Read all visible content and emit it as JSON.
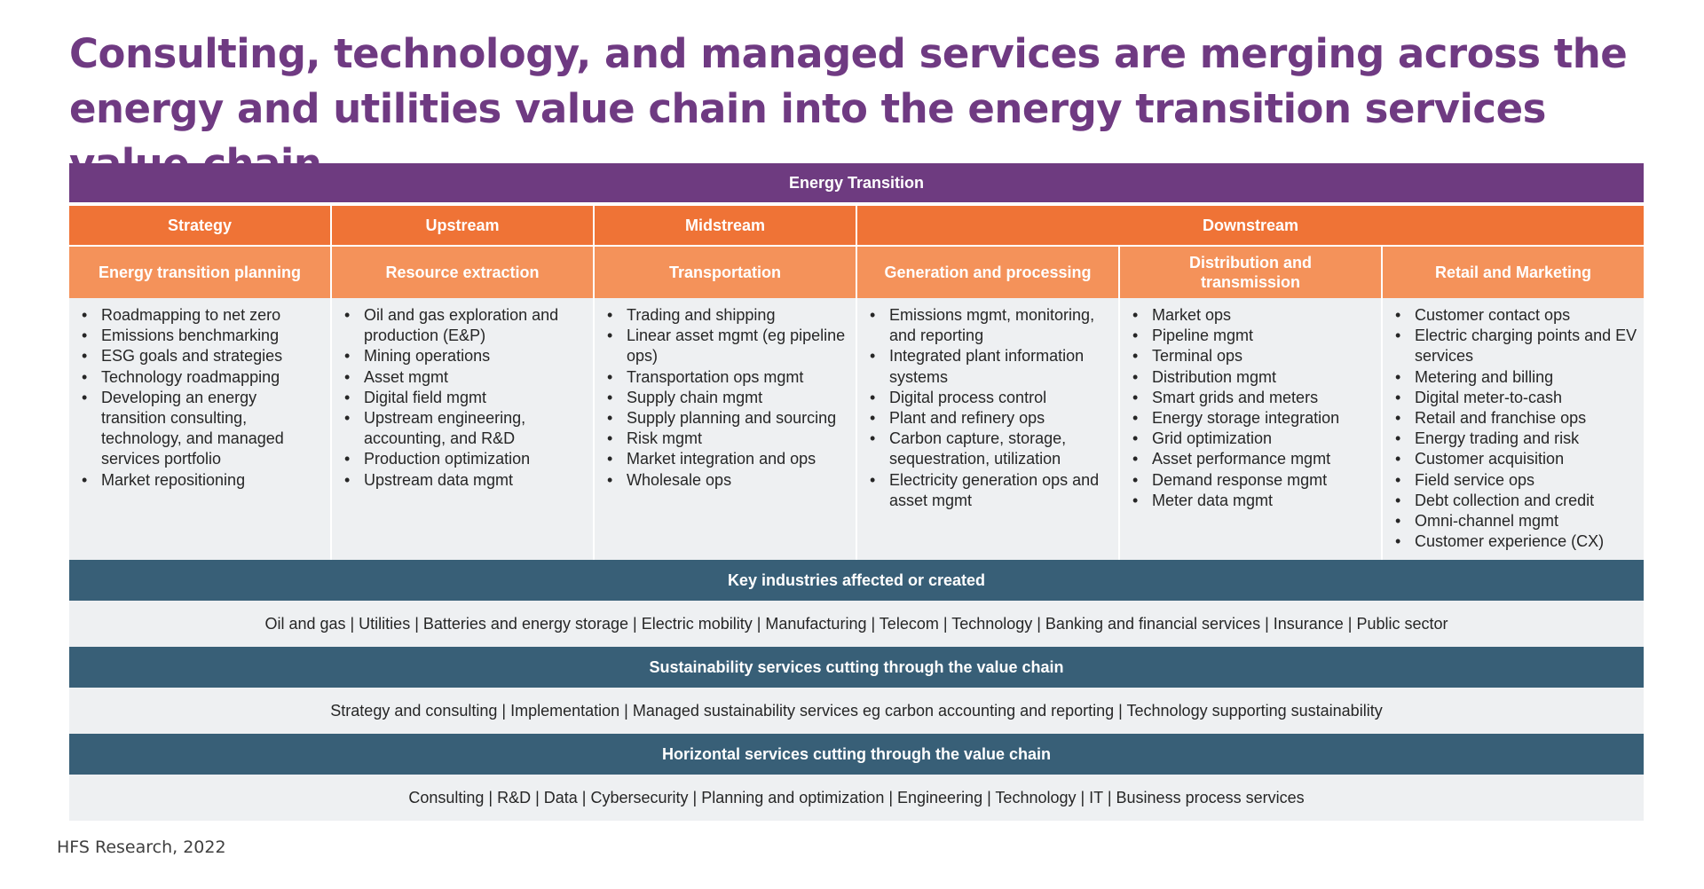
{
  "title": {
    "line1": "Consulting, technology, and managed services are merging across the",
    "line2": "energy and utilities value chain into the energy transition services value chain"
  },
  "top_band": "Energy Transition",
  "segments": [
    {
      "label": "Strategy"
    },
    {
      "label": "Upstream"
    },
    {
      "label": "Midstream"
    },
    {
      "label": "Downstream"
    }
  ],
  "columns": [
    {
      "header": "Energy transition planning",
      "items": [
        "Roadmapping to net zero",
        "Emissions benchmarking",
        "ESG goals and strategies",
        "Technology roadmapping",
        "Developing an energy transition consulting, technology, and managed services portfolio",
        "Market repositioning"
      ]
    },
    {
      "header": "Resource extraction",
      "items": [
        "Oil and gas exploration and production (E&P)",
        "Mining operations",
        "Asset mgmt",
        "Digital field mgmt",
        "Upstream engineering, accounting, and R&D",
        "Production optimization",
        "Upstream data mgmt"
      ]
    },
    {
      "header": "Transportation",
      "items": [
        "Trading and shipping",
        "Linear asset mgmt (eg pipeline ops)",
        "Transportation ops mgmt",
        "Supply chain mgmt",
        "Supply planning and sourcing",
        "Risk mgmt",
        "Market integration and ops",
        "Wholesale ops"
      ]
    },
    {
      "header": "Generation and processing",
      "items": [
        "Emissions mgmt, monitoring, and reporting",
        "Integrated plant information systems",
        "Digital process control",
        "Plant and refinery ops",
        "Carbon capture, storage, sequestration, utilization",
        "Electricity generation ops and asset mgmt"
      ]
    },
    {
      "header": "Distribution and transmission",
      "items": [
        "Market ops",
        "Pipeline mgmt",
        "Terminal ops",
        "Distribution mgmt",
        "Smart grids and meters",
        "Energy storage integration",
        "Grid optimization",
        "Asset performance mgmt",
        "Demand response mgmt",
        "Meter data mgmt"
      ]
    },
    {
      "header": "Retail and Marketing",
      "items": [
        "Customer contact ops",
        "Electric charging points and EV services",
        "Metering and billing",
        "Digital meter-to-cash",
        "Retail and franchise ops",
        "Energy trading and risk",
        "Customer acquisition",
        "Field service ops",
        "Debt collection and credit",
        "Omni-channel mgmt",
        "Customer experience (CX)"
      ]
    }
  ],
  "bands": [
    {
      "header": "Key industries affected or created",
      "content": "Oil and gas | Utilities  | Batteries and energy storage | Electric mobility | Manufacturing | Telecom | Technology | Banking and financial services | Insurance | Public sector"
    },
    {
      "header": "Sustainability services cutting through the value chain",
      "content": "Strategy and consulting | Implementation | Managed sustainability services eg carbon accounting and reporting | Technology supporting sustainability"
    },
    {
      "header": "Horizontal services cutting through the value chain",
      "content": "Consulting | R&D | Data | Cybersecurity | Planning and optimization | Engineering | Technology | IT | Business process services"
    }
  ],
  "source": "HFS Research, 2022",
  "colors": {
    "title": "#6f3a82",
    "top_band": "#6e3b80",
    "segment": "#ef7336",
    "subheader": "#f4925a",
    "cell": "#eef0f2",
    "slate_band": "#385f77"
  }
}
